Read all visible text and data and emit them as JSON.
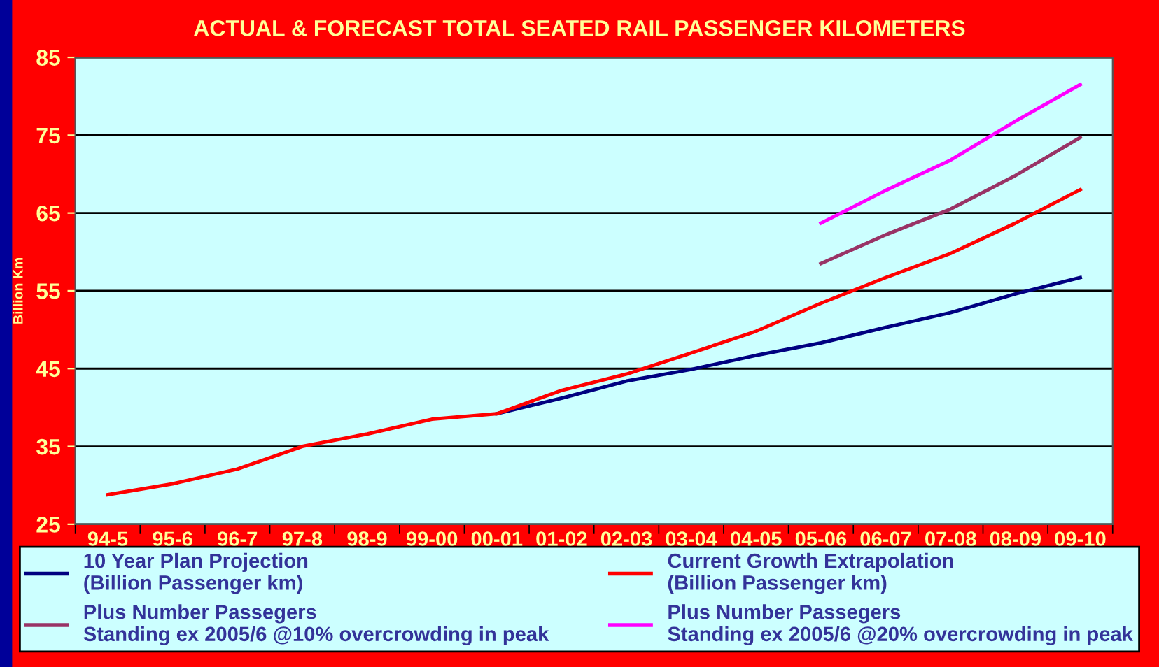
{
  "chart_data": {
    "type": "line",
    "title": "ACTUAL & FORECAST TOTAL SEATED RAIL PASSENGER KILOMETERS",
    "ylabel": "Billion Km",
    "categories": [
      "94-5",
      "95-6",
      "96-7",
      "97-8",
      "98-9",
      "99-00",
      "00-01",
      "01-02",
      "02-03",
      "03-04",
      "04-05",
      "05-06",
      "06-07",
      "07-08",
      "08-09",
      "09-10"
    ],
    "series": [
      {
        "name": "10 Year Plan Projection\n(Billion Passenger km)",
        "color": "#000080",
        "values": [
          null,
          null,
          null,
          null,
          null,
          null,
          39.2,
          41.2,
          43.4,
          44.9,
          46.7,
          48.3,
          50.3,
          52.2,
          54.6,
          56.7
        ]
      },
      {
        "name": "Current Growth Extrapolation\n(Billion Passenger km)",
        "color": "#ff0000",
        "values": [
          28.8,
          30.2,
          32.1,
          35.0,
          36.6,
          38.5,
          39.2,
          42.2,
          44.3,
          47.0,
          49.8,
          53.4,
          56.7,
          59.8,
          63.7,
          68.0
        ]
      },
      {
        "name": "Plus Number Passegers\nStanding ex 2005/6 @10% overcrowding in peak",
        "color": "#993366",
        "values": [
          null,
          null,
          null,
          null,
          null,
          null,
          null,
          null,
          null,
          null,
          null,
          58.5,
          62.2,
          65.5,
          69.8,
          74.7
        ]
      },
      {
        "name": "Plus Number Passegers\nStanding ex 2005/6 @20% overcrowding in peak",
        "color": "#ff00ff",
        "values": [
          null,
          null,
          null,
          null,
          null,
          null,
          null,
          null,
          null,
          null,
          null,
          63.7,
          67.9,
          71.8,
          76.8,
          81.5
        ]
      }
    ],
    "ylim": [
      25,
      85
    ],
    "yticks": [
      25,
      35,
      45,
      55,
      65,
      75,
      85
    ],
    "grid": "y",
    "legend": "bottom",
    "marker": "none",
    "line_style": "solid"
  }
}
